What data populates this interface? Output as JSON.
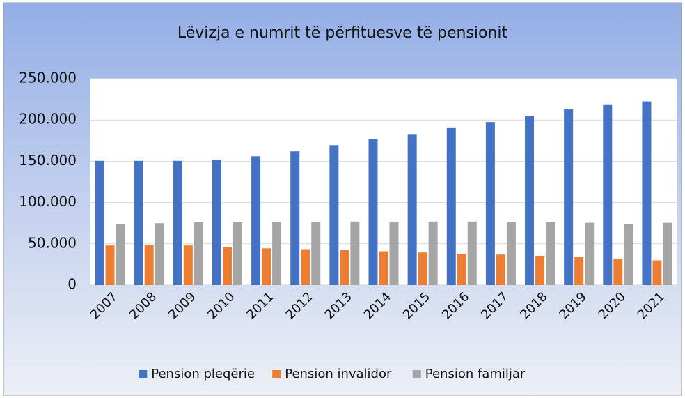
{
  "chart_data": {
    "type": "bar",
    "title": "Lëvizja e numrit të përfituesve të pensionit",
    "categories": [
      "2007",
      "2008",
      "2009",
      "2010",
      "2011",
      "2012",
      "2013",
      "2014",
      "2015",
      "2016",
      "2017",
      "2018",
      "2019",
      "2020",
      "2021"
    ],
    "series": [
      {
        "name": "Pension pleqërie",
        "color": "#4472c4",
        "values": [
          150500,
          150500,
          150500,
          152000,
          156000,
          162000,
          169500,
          176500,
          183000,
          191000,
          197500,
          205000,
          213000,
          219000,
          222500
        ]
      },
      {
        "name": "Pension invalidor",
        "color": "#ed7d31",
        "values": [
          48000,
          48500,
          48000,
          46000,
          44500,
          43500,
          42500,
          41000,
          39500,
          38000,
          37000,
          35500,
          34000,
          32000,
          30000
        ]
      },
      {
        "name": "Pension familjar",
        "color": "#a5a5a5",
        "values": [
          74000,
          75000,
          76000,
          76000,
          76500,
          76500,
          77000,
          76500,
          77000,
          77000,
          76500,
          76000,
          75500,
          74000,
          75500
        ]
      }
    ],
    "ylim": [
      0,
      250000
    ],
    "yticks": [
      0,
      {
        "value": 50000,
        "label": "50.000"
      },
      {
        "value": 100000,
        "label": "100.000"
      },
      {
        "value": 150000,
        "label": "150.000"
      },
      {
        "value": 200000,
        "label": "200.000"
      },
      {
        "value": 250000,
        "label": "250.000"
      }
    ],
    "grid": true,
    "legend": "bottom"
  }
}
